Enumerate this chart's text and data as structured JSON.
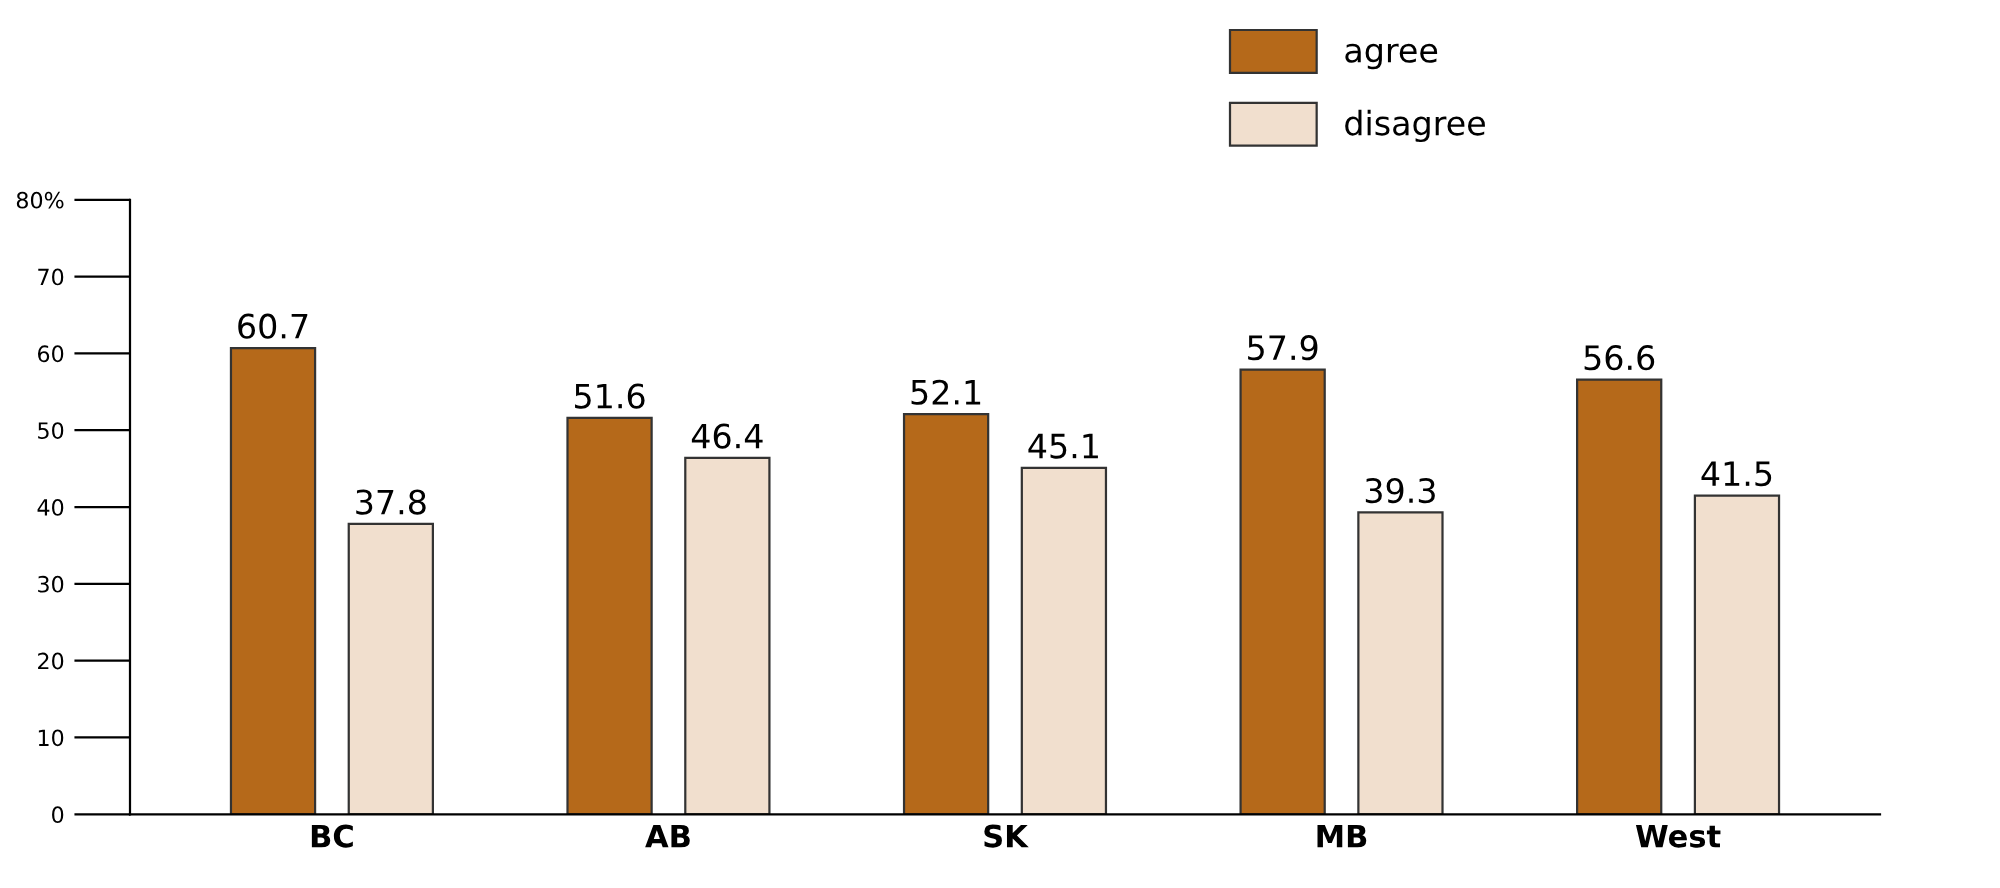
{
  "chart_data": {
    "type": "bar",
    "categories": [
      "BC",
      "AB",
      "SK",
      "MB",
      "West"
    ],
    "series": [
      {
        "name": "agree",
        "color": "#b5691a",
        "values": [
          60.7,
          51.6,
          52.1,
          57.9,
          56.6
        ]
      },
      {
        "name": "disagree",
        "color": "#f1dfce",
        "values": [
          37.8,
          46.4,
          45.1,
          39.3,
          41.5
        ]
      }
    ],
    "ylim": [
      0,
      80
    ],
    "yticks": [
      0,
      10,
      20,
      30,
      40,
      50,
      60,
      70,
      {
        "value": 80,
        "label": "80%"
      }
    ],
    "data_labels": true,
    "legend": "top right",
    "grid": false
  }
}
